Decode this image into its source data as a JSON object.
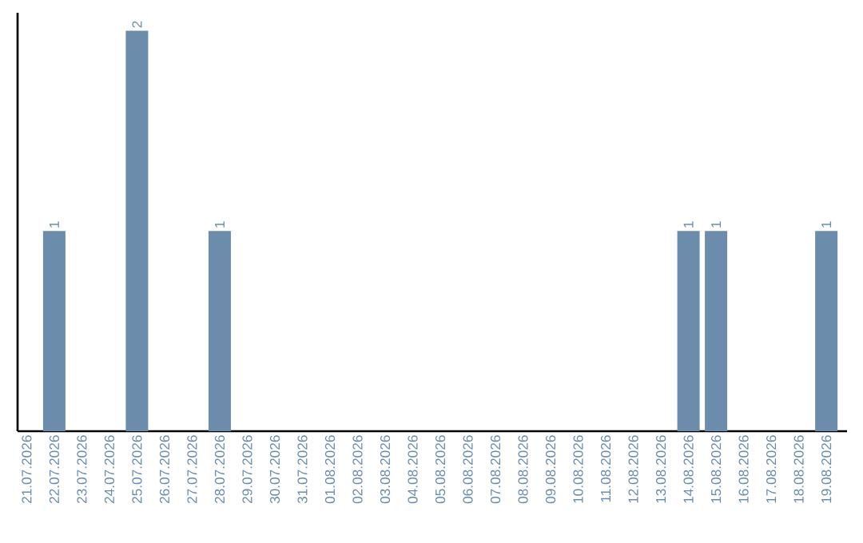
{
  "chart_data": {
    "type": "bar",
    "categories": [
      "21.07.2026",
      "22.07.2026",
      "23.07.2026",
      "24.07.2026",
      "25.07.2026",
      "26.07.2026",
      "27.07.2026",
      "28.07.2026",
      "29.07.2026",
      "30.07.2026",
      "31.07.2026",
      "01.08.2026",
      "02.08.2026",
      "03.08.2026",
      "04.08.2026",
      "05.08.2026",
      "06.08.2026",
      "07.08.2026",
      "08.08.2026",
      "09.08.2026",
      "10.08.2026",
      "11.08.2026",
      "12.08.2026",
      "13.08.2026",
      "14.08.2026",
      "15.08.2026",
      "16.08.2026",
      "17.08.2026",
      "18.08.2026",
      "19.08.2026"
    ],
    "values": [
      0,
      1,
      0,
      0,
      2,
      0,
      0,
      1,
      0,
      0,
      0,
      0,
      0,
      0,
      0,
      0,
      0,
      0,
      0,
      0,
      0,
      0,
      0,
      0,
      1,
      1,
      0,
      0,
      0,
      1
    ],
    "value_labels": [
      null,
      "1",
      null,
      null,
      "2",
      null,
      null,
      "1",
      null,
      null,
      null,
      null,
      null,
      null,
      null,
      null,
      null,
      null,
      null,
      null,
      null,
      null,
      null,
      null,
      "1",
      "1",
      null,
      null,
      null,
      "1"
    ],
    "color": "#6b8cab",
    "tick_labels": "x"
  }
}
